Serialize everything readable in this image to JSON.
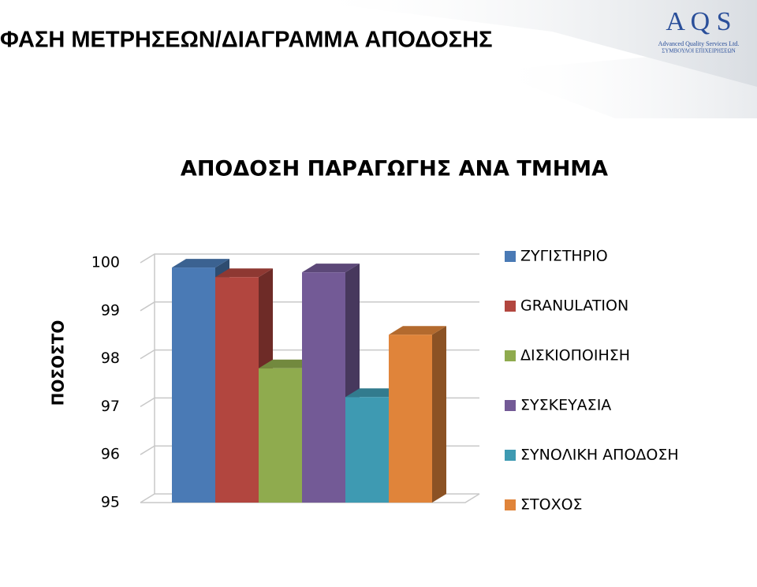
{
  "header": {
    "title": "ΦΑΣΗ ΜΕΤΡΗΣΕΩΝ/ΔΙΑΓΡΑΜΜΑ ΑΠΟΔΟΣΗΣ",
    "logo": "A Q S",
    "company": "Advanced Quality Services  Ltd.",
    "tagline": "ΣΥΜΒΟΥΛΟΙ  ΕΠΙΧΕΙΡΗΣΕΩΝ"
  },
  "chart_data": {
    "type": "bar3d",
    "title": "ΑΠΟΔΟΣΗ ΠΑΡΑΓΩΓΗΣ ΑΝΑ ΤΜΗΜΑ",
    "y_label": "ΠΟΣΟΣΤΟ",
    "categories": [
      null
    ],
    "series": [
      {
        "name": "ΖΥΓΙΣΤΗΡΙΟ",
        "color": "#4a7ab5",
        "values": [
          99.9
        ]
      },
      {
        "name": "GRANULATION",
        "color": "#b2463f",
        "values": [
          99.7
        ]
      },
      {
        "name": "ΔΙΣΚΙΟΠΟΙΗΣΗ",
        "color": "#8fab4e",
        "values": [
          97.8
        ]
      },
      {
        "name": "ΣΥΣΚΕΥΑΣΙΑ",
        "color": "#735a96",
        "values": [
          99.8
        ]
      },
      {
        "name": "ΣΥΝΟΛΙΚΗ ΑΠΟΔΟΣΗ",
        "color": "#3e9ab2",
        "values": [
          97.2
        ]
      },
      {
        "name": "ΣΤΟΧΟΣ",
        "color": "#e0843a",
        "values": [
          98.5
        ]
      }
    ],
    "ylim": [
      95,
      100
    ],
    "yticks": [
      95,
      96,
      97,
      98,
      99,
      100
    ],
    "grid": true,
    "legend": "right"
  }
}
